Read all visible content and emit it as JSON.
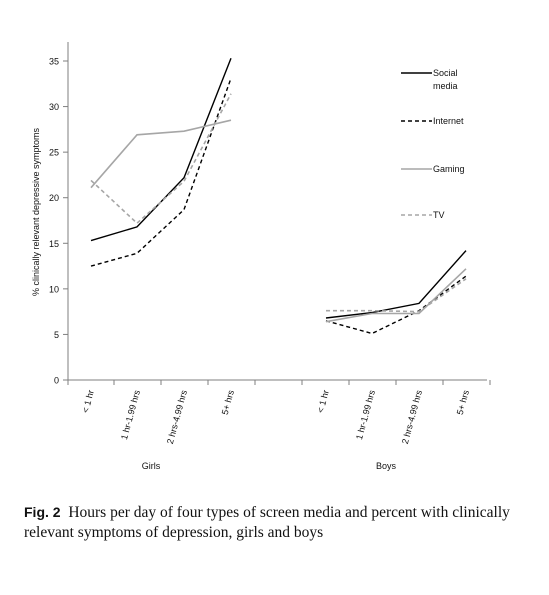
{
  "chart_data": {
    "type": "line",
    "ylabel": "% clinically relevant depressive symptoms",
    "ylim": [
      0,
      35
    ],
    "yticks": [
      0,
      5,
      10,
      15,
      20,
      25,
      30,
      35
    ],
    "groups": [
      {
        "name": "Girls",
        "categories": [
          "< 1 hr",
          "1 hr-1.99 hrs",
          "2 hrs-4.99 hrs",
          "5+ hrs"
        ],
        "series": [
          {
            "name": "Social media",
            "values": [
              15.3,
              16.8,
              22.2,
              35.3
            ]
          },
          {
            "name": "Internet",
            "values": [
              12.5,
              13.9,
              18.7,
              33.1
            ]
          },
          {
            "name": "Gaming",
            "values": [
              21.1,
              26.9,
              27.3,
              28.5
            ]
          },
          {
            "name": "TV",
            "values": [
              21.9,
              17.2,
              21.8,
              31.4
            ]
          }
        ]
      },
      {
        "name": "Boys",
        "categories": [
          "< 1 hr",
          "1 hr-1.99 hrs",
          "2 hrs-4.99 hrs",
          "5+ hrs"
        ],
        "series": [
          {
            "name": "Social media",
            "values": [
              6.8,
              7.4,
              8.4,
              14.2
            ]
          },
          {
            "name": "Internet",
            "values": [
              6.5,
              5.1,
              7.6,
              11.4
            ]
          },
          {
            "name": "Gaming",
            "values": [
              6.4,
              7.3,
              7.3,
              12.2
            ]
          },
          {
            "name": "TV",
            "values": [
              7.6,
              7.6,
              7.5,
              11.1
            ]
          }
        ]
      }
    ],
    "legend": {
      "placement": "right",
      "entries": [
        {
          "lines": [
            "Social",
            "media"
          ],
          "color": "#000000",
          "dash": "solid"
        },
        {
          "lines": [
            "Internet"
          ],
          "color": "#000000",
          "dash": "dashed"
        },
        {
          "lines": [
            "Gaming"
          ],
          "color": "#a6a6a6",
          "dash": "solid"
        },
        {
          "lines": [
            "TV"
          ],
          "color": "#a6a6a6",
          "dash": "dashed"
        }
      ]
    }
  },
  "caption": {
    "label": "Fig. 2",
    "text": "Hours per day of four types of screen media and percent with clinically relevant symptoms of depression, girls and boys"
  }
}
